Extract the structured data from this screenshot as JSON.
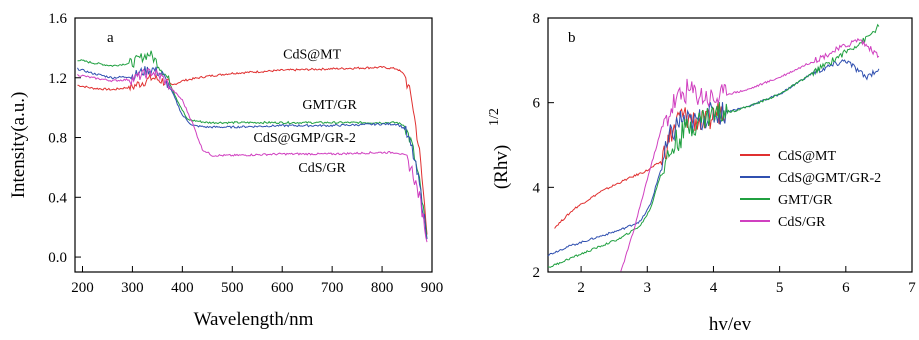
{
  "chart_data": [
    {
      "type": "line",
      "panel_label": "a",
      "xlabel": "Wavelength/nm",
      "ylabel": "Intensity(a.u.)",
      "xlim": [
        185,
        900
      ],
      "ylim": [
        -0.1,
        1.6
      ],
      "xticks": [
        "200",
        "300",
        "400",
        "500",
        "600",
        "700",
        "800",
        "900"
      ],
      "yticks": [
        "0.0",
        "0.4",
        "0.8",
        "1.2",
        "1.6"
      ],
      "series": [
        {
          "name": "CdS@MT",
          "color": "#e03030",
          "x": [
            190,
            220,
            260,
            300,
            320,
            340,
            360,
            380,
            400,
            450,
            500,
            600,
            700,
            800,
            830,
            845,
            860,
            875,
            885,
            890
          ],
          "y": [
            1.15,
            1.13,
            1.12,
            1.14,
            1.17,
            1.2,
            1.18,
            1.15,
            1.18,
            1.21,
            1.23,
            1.25,
            1.26,
            1.27,
            1.26,
            1.22,
            1.05,
            0.7,
            0.35,
            0.15
          ]
        },
        {
          "name": "GMT/GR",
          "color": "#20a040",
          "x": [
            190,
            220,
            260,
            300,
            320,
            335,
            350,
            370,
            390,
            410,
            450,
            500,
            600,
            700,
            800,
            830,
            845,
            860,
            875,
            885,
            890
          ],
          "y": [
            1.32,
            1.3,
            1.28,
            1.3,
            1.34,
            1.36,
            1.3,
            1.2,
            1.05,
            0.92,
            0.9,
            0.9,
            0.9,
            0.9,
            0.9,
            0.9,
            0.88,
            0.75,
            0.5,
            0.25,
            0.12
          ]
        },
        {
          "name": "CdS@GMP/GR-2",
          "color": "#3050b0",
          "x": [
            190,
            220,
            260,
            300,
            320,
            340,
            360,
            380,
            400,
            420,
            450,
            500,
            600,
            700,
            800,
            830,
            845,
            860,
            875,
            885,
            890
          ],
          "y": [
            1.26,
            1.23,
            1.2,
            1.21,
            1.24,
            1.26,
            1.22,
            1.1,
            0.95,
            0.88,
            0.87,
            0.87,
            0.88,
            0.88,
            0.89,
            0.89,
            0.86,
            0.72,
            0.48,
            0.25,
            0.12
          ]
        },
        {
          "name": "CdS/GR",
          "color": "#d040c0",
          "x": [
            190,
            220,
            260,
            300,
            320,
            340,
            360,
            380,
            400,
            420,
            440,
            460,
            500,
            600,
            700,
            800,
            830,
            845,
            860,
            875,
            885,
            890
          ],
          "y": [
            1.22,
            1.2,
            1.18,
            1.19,
            1.22,
            1.24,
            1.2,
            1.12,
            1.05,
            0.9,
            0.72,
            0.68,
            0.68,
            0.69,
            0.69,
            0.7,
            0.7,
            0.68,
            0.58,
            0.4,
            0.22,
            0.1
          ]
        }
      ],
      "annotations": [
        {
          "text": "CdS@MT",
          "x": 660,
          "y": 1.33
        },
        {
          "text": "GMT/GR",
          "x": 695,
          "y": 0.99
        },
        {
          "text": "CdS@GMP/GR-2",
          "x": 645,
          "y": 0.77
        },
        {
          "text": "CdS/GR",
          "x": 680,
          "y": 0.57
        }
      ]
    },
    {
      "type": "line",
      "panel_label": "b",
      "xlabel": "hv/ev",
      "ylabel": "(Rhv)",
      "ylabel_superscript": "1/2",
      "xlim": [
        1.5,
        7
      ],
      "ylim": [
        2,
        8
      ],
      "xticks": [
        "2",
        "3",
        "4",
        "5",
        "6",
        "7"
      ],
      "yticks": [
        "2",
        "4",
        "6",
        "8"
      ],
      "legend_position": "center-right",
      "series": [
        {
          "name": "CdS@MT",
          "color": "#e03030",
          "x": [
            1.6,
            1.9,
            2.3,
            2.7,
            3.0,
            3.2,
            3.35,
            3.5,
            3.7,
            3.9,
            4.0,
            4.1,
            4.2
          ],
          "y": [
            3.05,
            3.5,
            3.9,
            4.2,
            4.4,
            4.6,
            5.2,
            5.7,
            5.6,
            5.5,
            5.7,
            5.8,
            5.9
          ]
        },
        {
          "name": "CdS@GMT/GR-2",
          "color": "#3050b0",
          "x": [
            1.5,
            1.8,
            2.2,
            2.6,
            2.9,
            3.05,
            3.2,
            3.35,
            3.5,
            3.7,
            3.9,
            4.1,
            4.5,
            5.0,
            5.5,
            6.0,
            6.3,
            6.5
          ],
          "y": [
            2.4,
            2.6,
            2.8,
            3.0,
            3.2,
            3.6,
            4.4,
            5.2,
            5.6,
            5.5,
            5.7,
            5.75,
            5.9,
            6.2,
            6.7,
            7.0,
            6.6,
            6.8
          ]
        },
        {
          "name": "GMT/GR",
          "color": "#20a040",
          "x": [
            1.5,
            1.8,
            2.2,
            2.6,
            2.9,
            3.05,
            3.2,
            3.4,
            3.6,
            3.8,
            4.0,
            4.3,
            4.6,
            5.0,
            5.4,
            5.8,
            6.1,
            6.3,
            6.5
          ],
          "y": [
            2.1,
            2.3,
            2.55,
            2.8,
            3.1,
            3.5,
            4.3,
            5.0,
            5.4,
            5.6,
            5.75,
            5.8,
            5.95,
            6.2,
            6.6,
            7.0,
            7.3,
            7.5,
            7.8
          ]
        },
        {
          "name": "CdS/GR",
          "color": "#d040c0",
          "x": [
            2.6,
            2.8,
            3.0,
            3.2,
            3.4,
            3.6,
            3.8,
            4.0,
            4.2,
            4.5,
            5.0,
            5.4,
            5.8,
            6.2,
            6.5
          ],
          "y": [
            2.0,
            3.0,
            4.2,
            5.3,
            6.0,
            6.3,
            6.2,
            6.1,
            6.2,
            6.3,
            6.6,
            6.9,
            7.2,
            7.5,
            7.1
          ]
        }
      ]
    }
  ]
}
